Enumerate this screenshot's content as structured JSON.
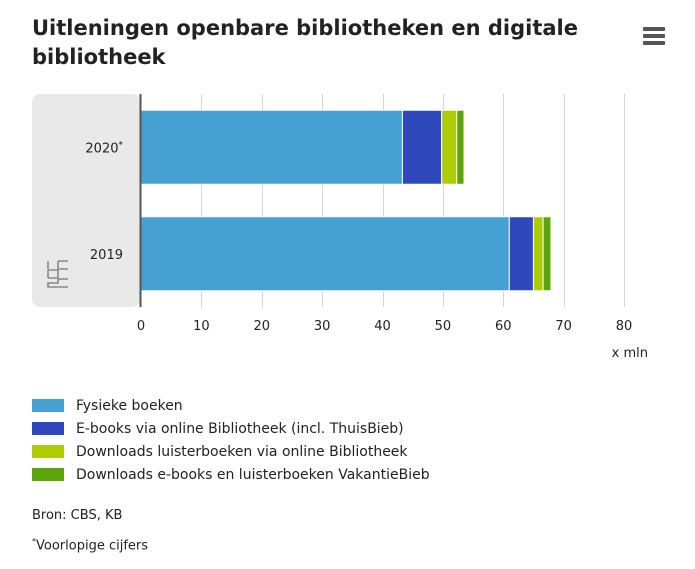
{
  "title": "Uitleningen openbare bibliotheken en digitale bibliotheek",
  "menu_icon": "hamburger-menu-icon",
  "logo_icon": "cbs-logo-icon",
  "source": "Bron: CBS, KB",
  "footnote_mark": "*",
  "footnote_text": "Voorlopige cijfers",
  "chart_data": {
    "type": "bar",
    "orientation": "horizontal",
    "stacked": true,
    "categories": [
      {
        "label": "2020",
        "mark": "*"
      },
      {
        "label": "2019",
        "mark": ""
      }
    ],
    "series": [
      {
        "name": "Fysieke boeken",
        "color": "#46a0d2",
        "values": [
          43.3,
          61.0
        ]
      },
      {
        "name": "E-books via online Bibliotheek (incl. ThuisBieb)",
        "color": "#2f49bd",
        "values": [
          6.5,
          4.0
        ]
      },
      {
        "name": "Downloads luisterboeken via online Bibliotheek",
        "color": "#afcd07",
        "values": [
          2.5,
          1.6
        ]
      },
      {
        "name": "Downloads e-books en luisterboeken VakantieBieb",
        "color": "#5ca50b",
        "values": [
          1.2,
          1.3
        ]
      }
    ],
    "xlim": [
      0,
      80
    ],
    "xticks": [
      0,
      10,
      20,
      30,
      40,
      50,
      60,
      70,
      80
    ],
    "xlabel": "x mln",
    "ylabel": "",
    "grid": true,
    "legend_position": "bottom"
  }
}
